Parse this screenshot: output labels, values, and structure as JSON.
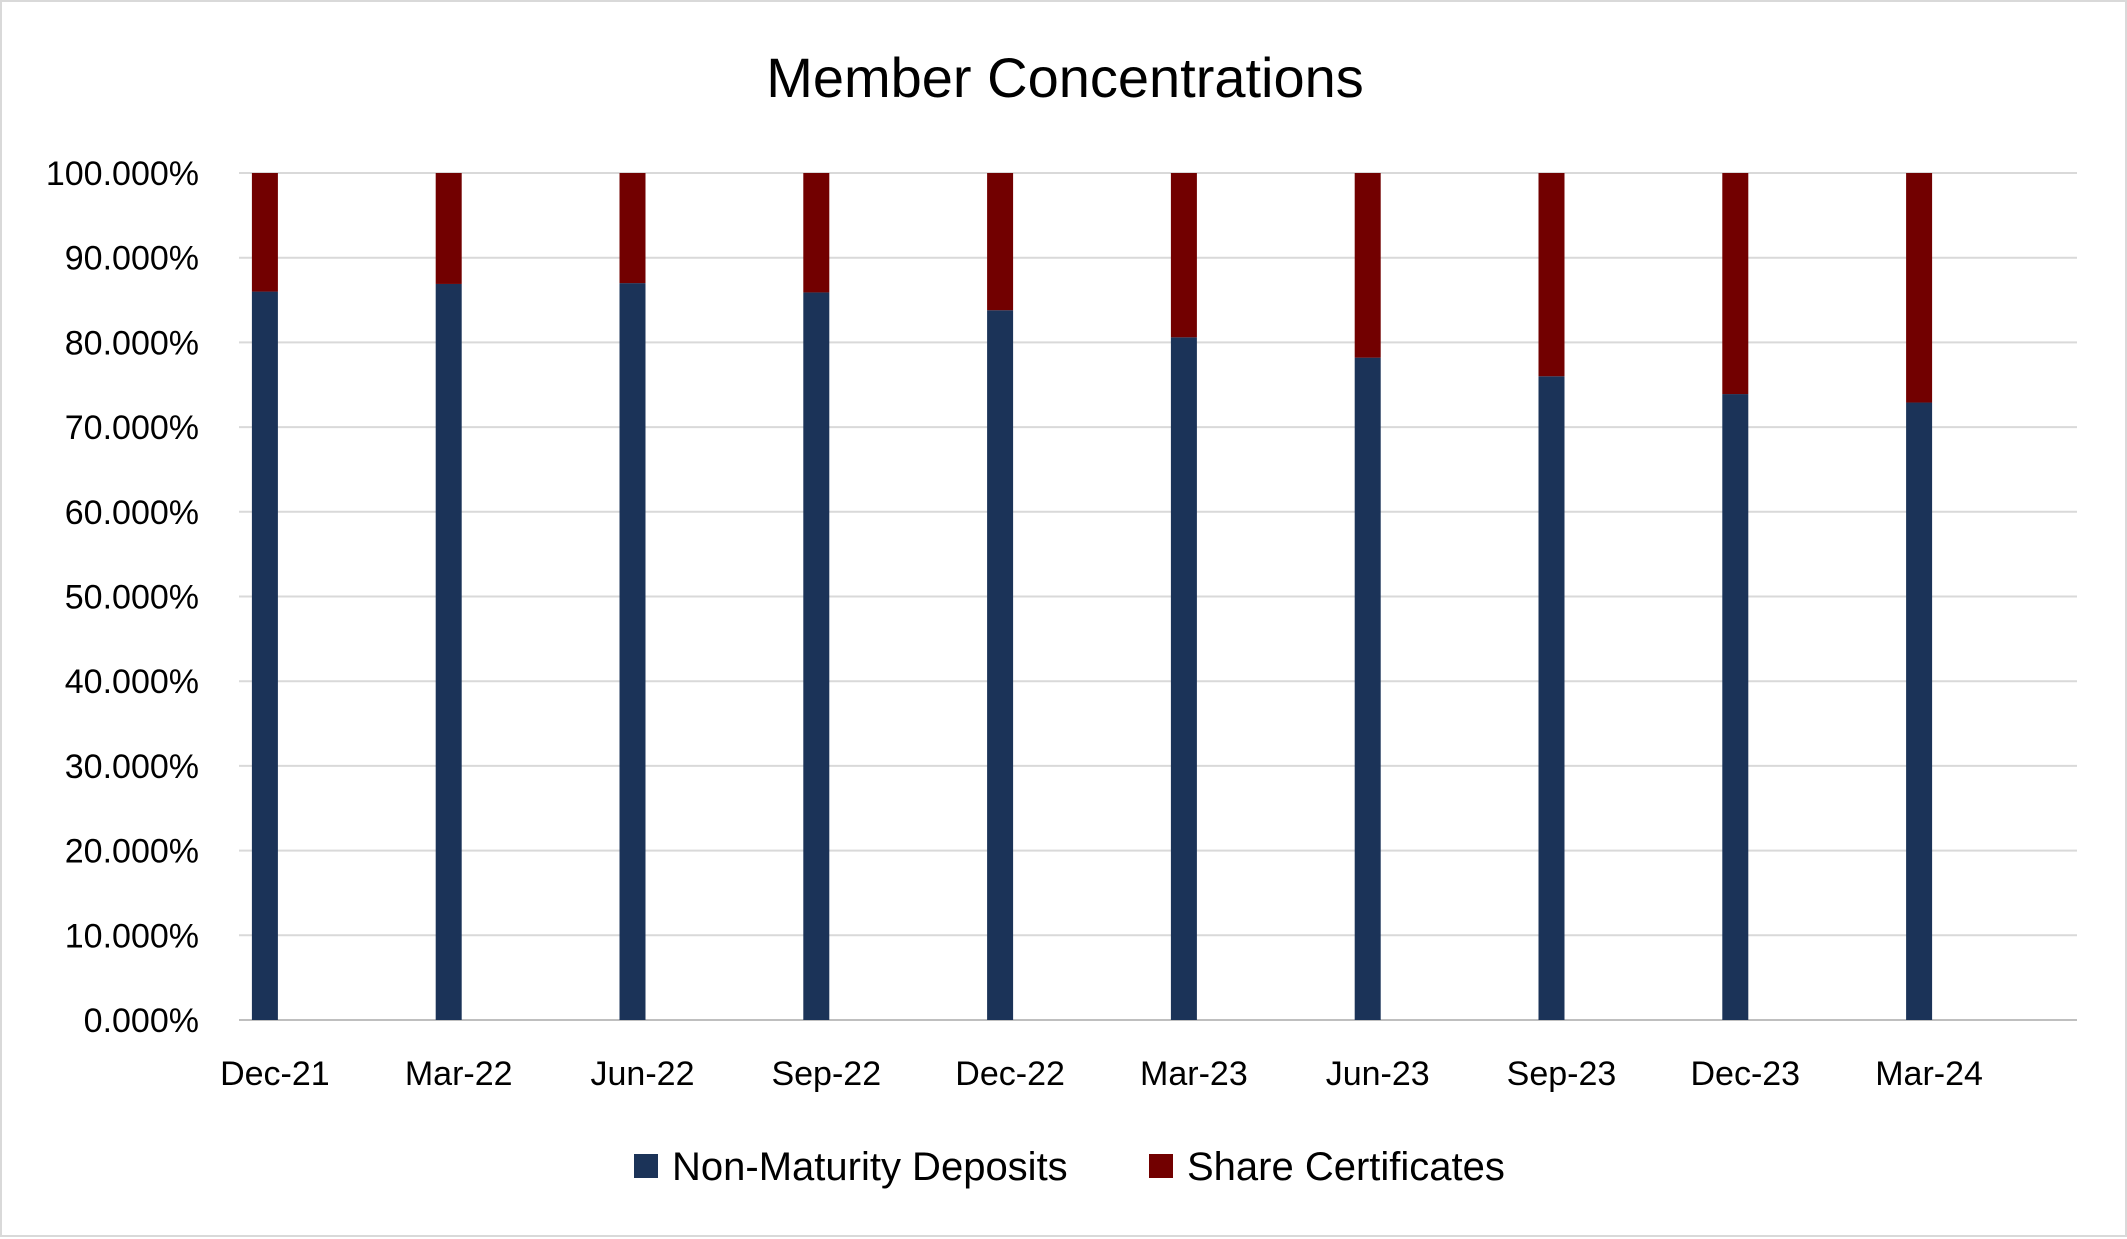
{
  "chart_data": {
    "type": "bar",
    "stacked": true,
    "title": "Member Concentrations",
    "categories": [
      "Dec-21",
      "Mar-22",
      "Jun-22",
      "Sep-22",
      "Dec-22",
      "Mar-23",
      "Jun-23",
      "Sep-23",
      "Dec-23",
      "Mar-24"
    ],
    "series": [
      {
        "name": "Non-Maturity Deposits",
        "color": "#1b3358",
        "values": [
          86.0,
          86.9,
          87.0,
          85.9,
          83.8,
          80.6,
          78.2,
          76.0,
          73.9,
          72.9
        ]
      },
      {
        "name": "Share Certificates",
        "color": "#720000",
        "values": [
          14.0,
          13.1,
          13.0,
          14.1,
          16.2,
          19.4,
          21.8,
          24.0,
          26.1,
          27.1
        ]
      }
    ],
    "yticks": [
      "0.000%",
      "10.000%",
      "20.000%",
      "30.000%",
      "40.000%",
      "50.000%",
      "60.000%",
      "70.000%",
      "80.000%",
      "90.000%",
      "100.000%"
    ],
    "ylim": [
      0,
      100
    ],
    "grid": true,
    "legend_position": "bottom"
  }
}
